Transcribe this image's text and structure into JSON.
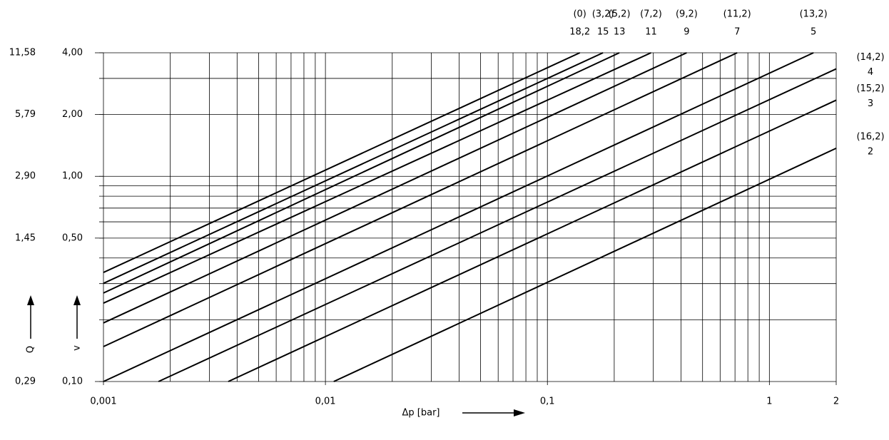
{
  "chart_data": {
    "type": "line",
    "xlabel": "Δp [bar]",
    "ylabel": "v",
    "y2label": "Q",
    "xscale": "log",
    "yscale": "log",
    "xlim": [
      0.001,
      2
    ],
    "ylim": [
      0.1,
      4
    ],
    "y2lim": [
      0.29,
      11.58
    ],
    "xticks": [
      {
        "value": 0.001,
        "label": "0,001"
      },
      {
        "value": 0.01,
        "label": "0,01"
      },
      {
        "value": 0.1,
        "label": "0,1"
      },
      1,
      2
    ],
    "yticks": [
      {
        "value": 0.1,
        "label": "0,10"
      },
      {
        "value": 0.5,
        "label": "0,50"
      },
      {
        "value": 1,
        "label": "1,00"
      },
      {
        "value": 2,
        "label": "2,00"
      },
      {
        "value": 4,
        "label": "4,00"
      }
    ],
    "y2ticks": [
      {
        "value": 0.29,
        "label": "0,29"
      },
      {
        "value": 1.45,
        "label": "1,45"
      },
      {
        "value": 2.9,
        "label": "2,90"
      },
      {
        "value": 5.79,
        "label": "5,79"
      },
      {
        "value": 11.58,
        "label": "11,58"
      }
    ],
    "xgrid": [
      0.001,
      0.002,
      0.003,
      0.004,
      0.005,
      0.006,
      0.007,
      0.008,
      0.009,
      0.01,
      0.02,
      0.03,
      0.04,
      0.05,
      0.06,
      0.07,
      0.08,
      0.09,
      0.1,
      0.2,
      0.3,
      0.4,
      0.5,
      0.6,
      0.7,
      0.8,
      0.9,
      1,
      2
    ],
    "ygrid": [
      0.1,
      0.2,
      0.3,
      0.4,
      0.5,
      0.6,
      0.7,
      0.8,
      0.9,
      1,
      2,
      3,
      4
    ],
    "color": "#000000",
    "series": [
      {
        "name": "18,2",
        "code": "(0)",
        "x": [
          0.001,
          0.14
        ],
        "values": [
          0.34,
          4
        ]
      },
      {
        "name": "15",
        "code": "(3,2)",
        "x": [
          0.001,
          0.178
        ],
        "values": [
          0.301,
          4
        ]
      },
      {
        "name": "13",
        "code": "(5,2)",
        "x": [
          0.001,
          0.211
        ],
        "values": [
          0.27,
          4
        ]
      },
      {
        "name": "11",
        "code": "(7,2)",
        "x": [
          0.001,
          0.293
        ],
        "values": [
          0.241,
          4
        ]
      },
      {
        "name": "9",
        "code": "(9,2)",
        "x": [
          0.001,
          0.424
        ],
        "values": [
          0.193,
          4
        ]
      },
      {
        "name": "7",
        "code": "(11,2)",
        "x": [
          0.001,
          0.716
        ],
        "values": [
          0.148,
          4
        ]
      },
      {
        "name": "5",
        "code": "(13,2)",
        "x": [
          0.001,
          1.58
        ],
        "values": [
          0.1,
          4
        ]
      },
      {
        "name": "4",
        "code": "(14,2)",
        "x": [
          0.00177,
          2
        ],
        "values": [
          0.1,
          3.34
        ]
      },
      {
        "name": "3",
        "code": "(15,2)",
        "x": [
          0.00365,
          2
        ],
        "values": [
          0.1,
          2.35
        ]
      },
      {
        "name": "2",
        "code": "(16,2)",
        "x": [
          0.0109,
          2
        ],
        "values": [
          0.1,
          1.37
        ]
      }
    ]
  }
}
